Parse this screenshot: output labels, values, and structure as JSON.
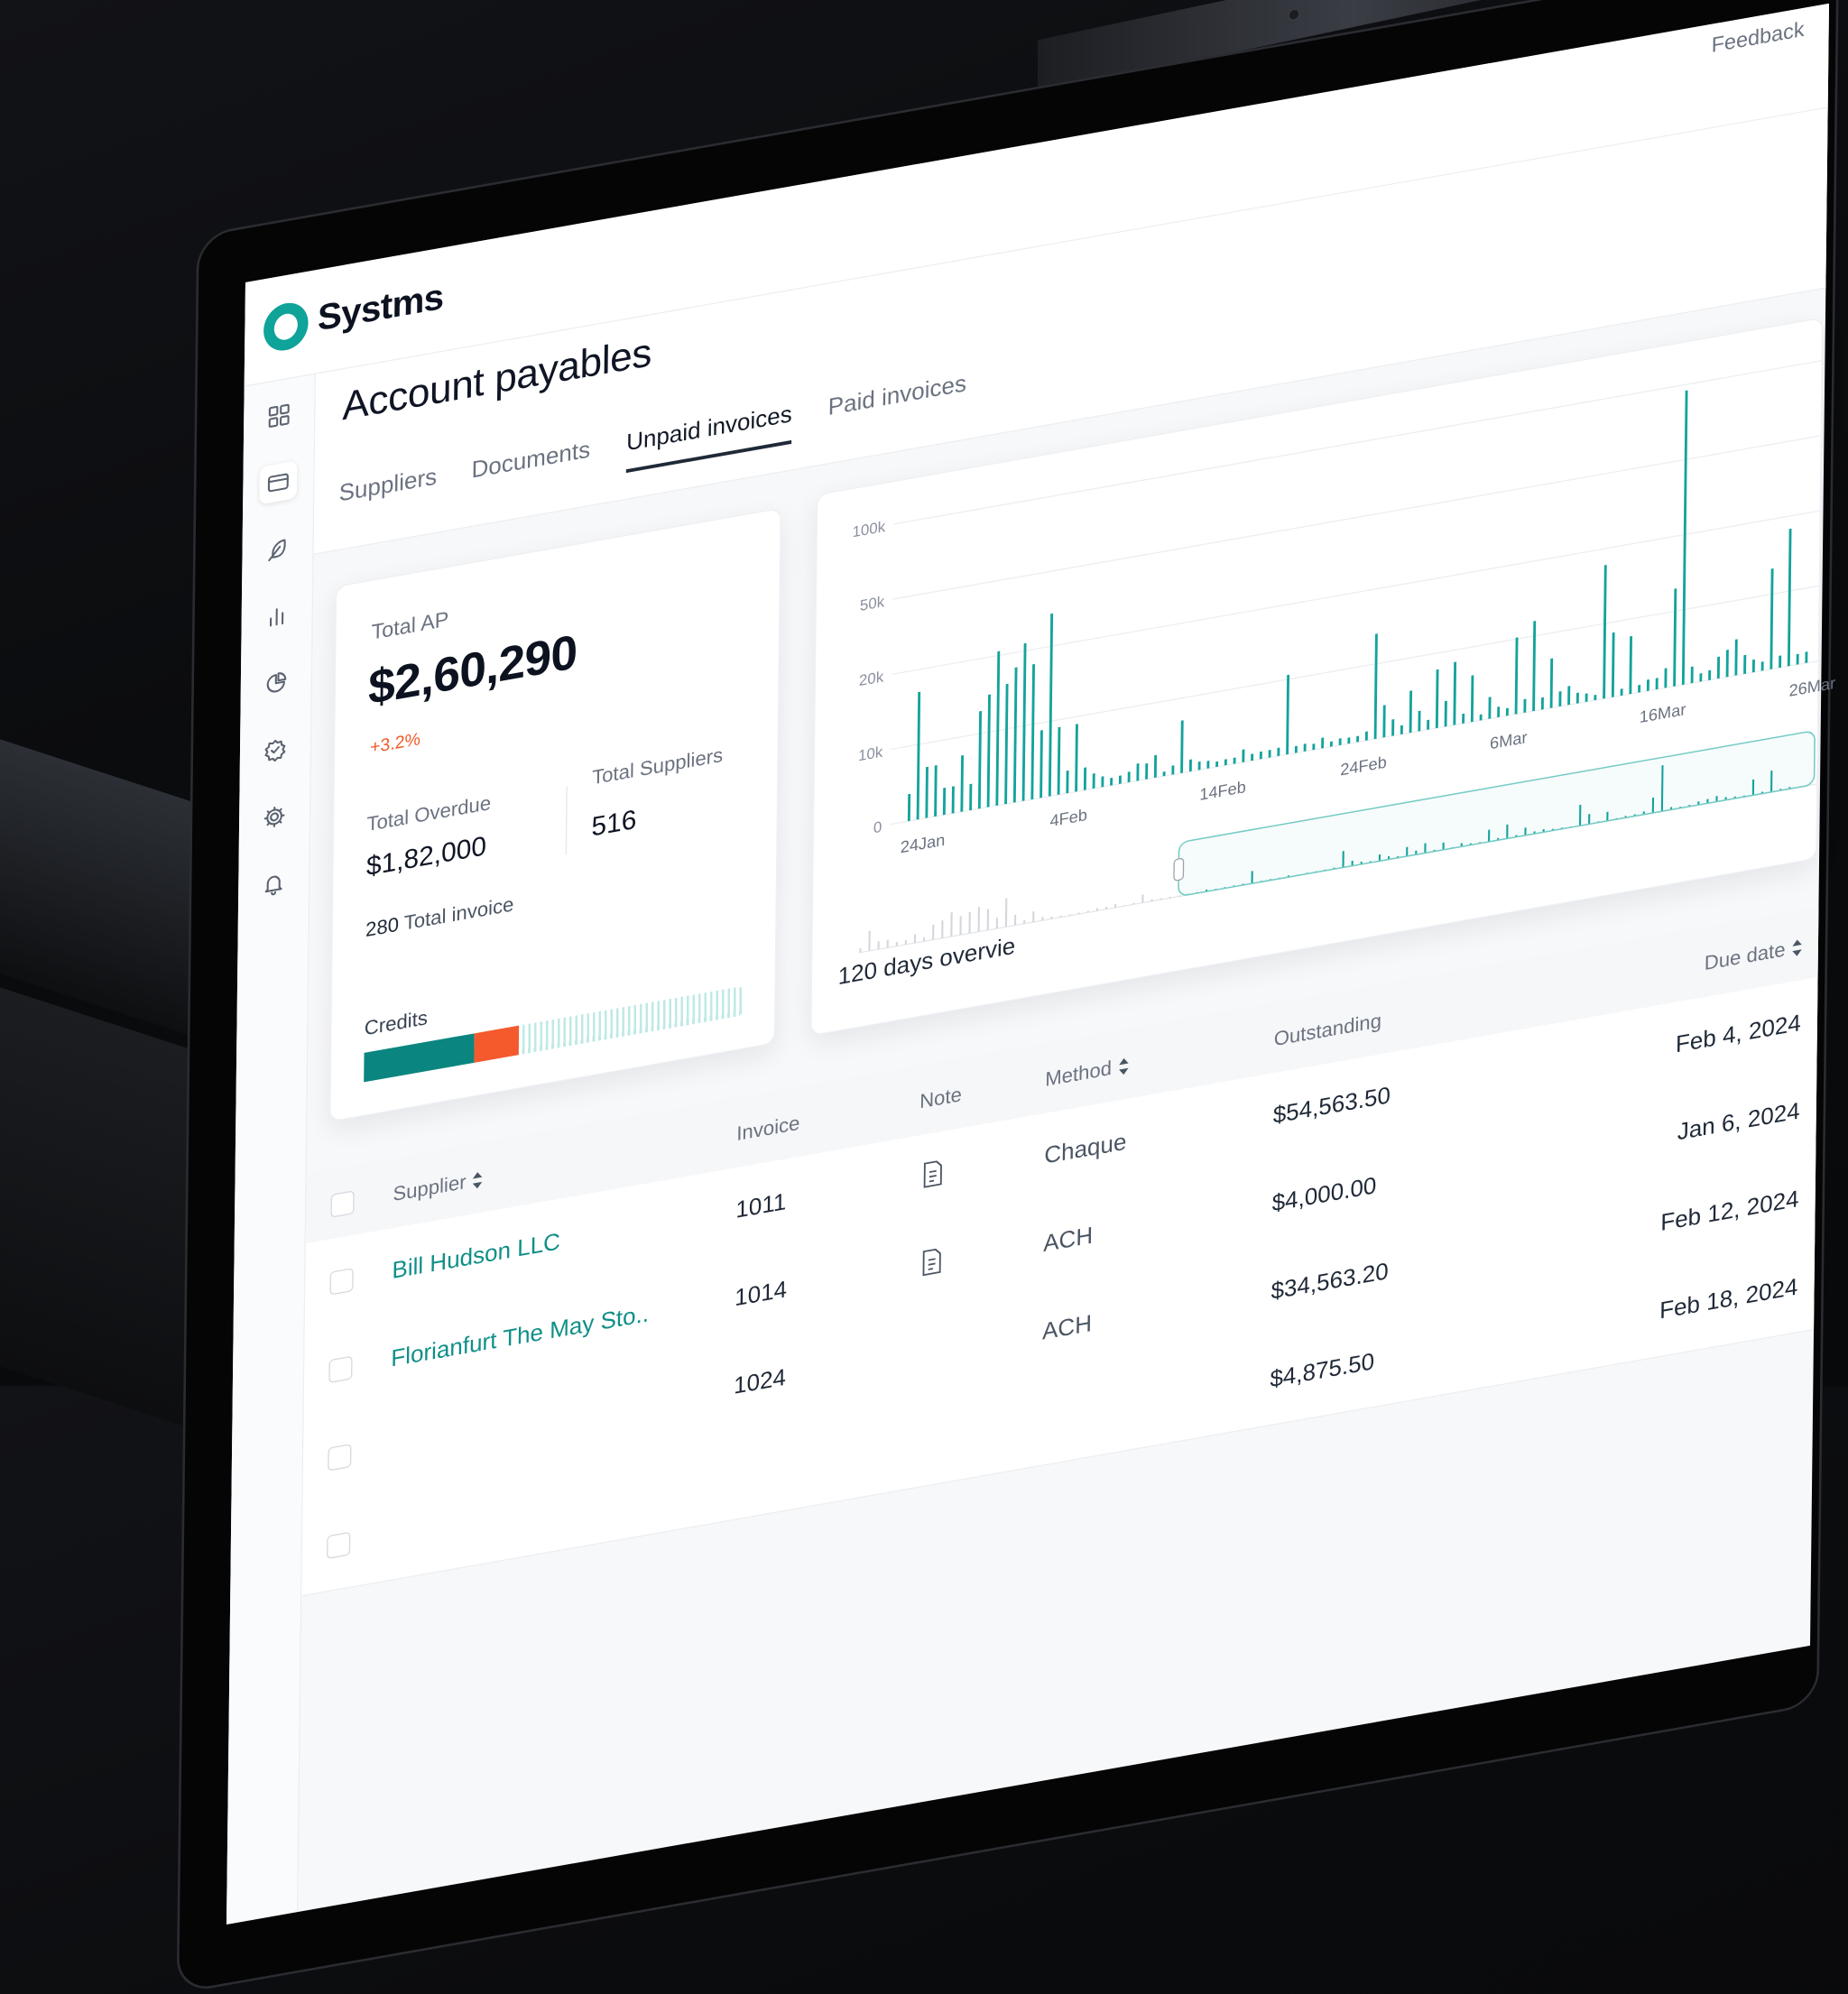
{
  "app": {
    "brand": "Systms",
    "feedback_label": "Feedback",
    "accent_color": "#0fa39a",
    "alert_color": "#f05a28"
  },
  "sidebar": {
    "items": [
      {
        "icon": "grid-icon"
      },
      {
        "icon": "card-icon",
        "active": true
      },
      {
        "icon": "feather-icon"
      },
      {
        "icon": "bar-chart-icon"
      },
      {
        "icon": "pie-chart-icon"
      },
      {
        "icon": "badge-check-icon"
      },
      {
        "icon": "gear-icon"
      },
      {
        "icon": "bell-icon"
      }
    ]
  },
  "page": {
    "title": "Account payables"
  },
  "tabs": [
    {
      "label": "Suppliers"
    },
    {
      "label": "Documents"
    },
    {
      "label": "Unpaid invoices",
      "active": true
    },
    {
      "label": "Paid invoices"
    }
  ],
  "summary": {
    "total_ap_label": "Total AP",
    "total_ap_value": "$2,60,290",
    "change": "+3.2%",
    "overdue_label": "Total Overdue",
    "overdue_value": "$1,82,000",
    "suppliers_label": "Total Suppliers",
    "suppliers_value": "516",
    "invoice_count": "280",
    "invoice_label": "Total invoice",
    "credits_label": "Credits",
    "credits": {
      "primary_pct": 29,
      "secondary_pct": 12,
      "primary_color": "#0b857f",
      "secondary_color": "#f55a2c"
    }
  },
  "chart_data": {
    "type": "bar",
    "title": "120 days overvie",
    "y_ticks": [
      "0",
      "10k",
      "20k",
      "50k",
      "100k"
    ],
    "y_tick_values": [
      0,
      10000,
      20000,
      50000,
      100000
    ],
    "y_scale": "piecewise (equal spacing per tick)",
    "x_ticks": [
      {
        "label": "24Jan",
        "index": 0
      },
      {
        "label": "4Feb",
        "index": 17
      },
      {
        "label": "14Feb",
        "index": 34
      },
      {
        "label": "24Feb",
        "index": 50
      },
      {
        "label": "6Mar",
        "index": 67
      },
      {
        "label": "16Mar",
        "index": 84
      },
      {
        "label": "26Mar",
        "index": 101
      }
    ],
    "grid": true,
    "bar_color": "#13a39b",
    "values": [
      3600,
      17000,
      6800,
      6800,
      3600,
      3600,
      7500,
      3500,
      13000,
      15000,
      21700,
      16000,
      18000,
      23000,
      18000,
      9000,
      33000,
      9000,
      3000,
      9000,
      3000,
      2000,
      1400,
      1000,
      1100,
      1400,
      2300,
      2100,
      3000,
      600,
      1200,
      7000,
      1600,
      1100,
      1000,
      700,
      800,
      800,
      1700,
      900,
      1000,
      1000,
      1100,
      10600,
      900,
      1000,
      800,
      1400,
      700,
      900,
      800,
      800,
      1200,
      14000,
      4300,
      2200,
      1200,
      5600,
      2700,
      1300,
      7800,
      3400,
      8400,
      1300,
      6200,
      800,
      2900,
      1400,
      1000,
      10200,
      1800,
      12000,
      1600,
      6600,
      2000,
      2500,
      1400,
      1100,
      700,
      17800,
      8600,
      900,
      7700,
      1000,
      1500,
      1500,
      2600,
      13000,
      96000,
      2200,
      1100,
      1300,
      2900,
      3600,
      4800,
      2500,
      1700,
      1200,
      13400,
      1600,
      18300,
      1400,
      1500
    ],
    "navigator": {
      "selection_start_pct": 34
    }
  },
  "table": {
    "headers": {
      "supplier": "Supplier",
      "invoice": "Invoice",
      "note": "Note",
      "method": "Method",
      "outstanding": "Outstanding",
      "due_date": "Due date"
    },
    "rows": [
      {
        "supplier": "Bill Hudson LLC",
        "invoice": "1011",
        "note": true,
        "method": "Chaque",
        "outstanding": "$54,563.50",
        "due_date": "Feb 4, 2024"
      },
      {
        "supplier": "Florianfurt The May Sto..",
        "invoice": "1014",
        "note": true,
        "method": "ACH",
        "outstanding": "$4,000.00",
        "due_date": "Jan 6, 2024"
      },
      {
        "invoice": "1024",
        "method": "ACH",
        "outstanding": "$34,563.20",
        "due_date": "Feb 12, 2024"
      },
      {
        "outstanding": "$4,875.50",
        "due_date": "Feb 18, 2024"
      }
    ]
  }
}
